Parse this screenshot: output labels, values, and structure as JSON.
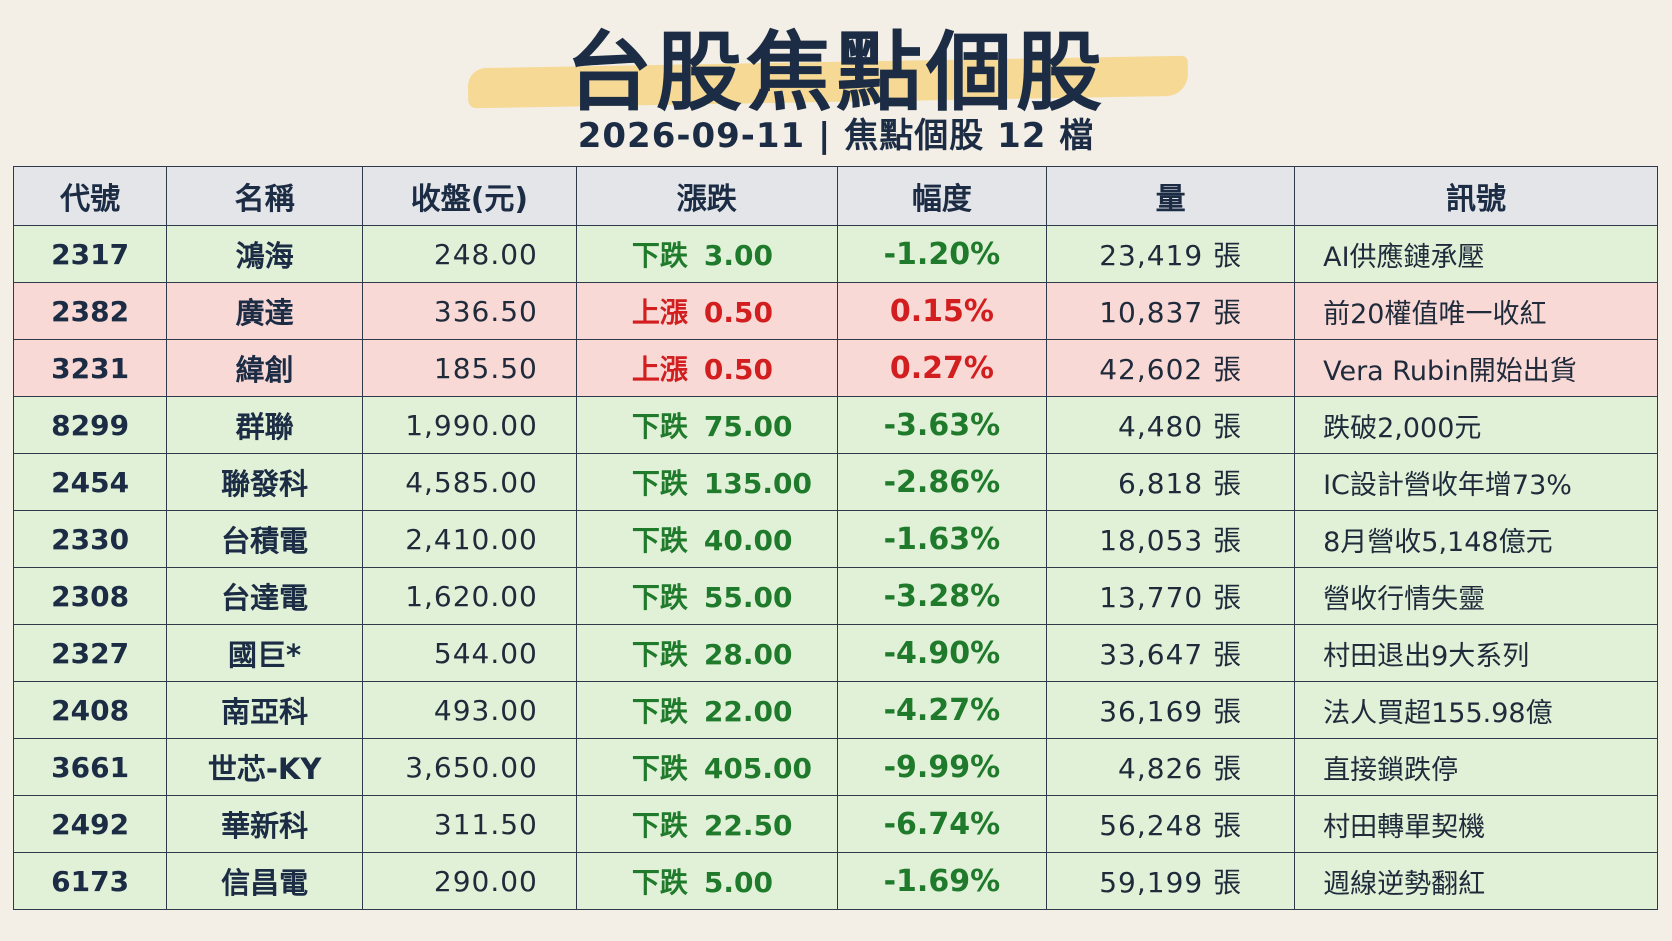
{
  "header": {
    "title": "台股焦點個股",
    "subtitle": "2026-09-11 | 焦點個股 12 檔"
  },
  "columns": [
    "代號",
    "名稱",
    "收盤(元)",
    "漲跌",
    "幅度",
    "量",
    "訊號"
  ],
  "colors": {
    "up": "#d21e1e",
    "down": "#1f7a2b",
    "up_row": "#f8d9d6",
    "down_row": "#e1f1d8"
  },
  "rows": [
    {
      "code": "2317",
      "name": "鴻海",
      "close": "248.00",
      "dir": "down",
      "chg_label": "下跌",
      "chg": "3.00",
      "pct": "-1.20%",
      "vol": "23,419 張",
      "signal": "AI供應鏈承壓"
    },
    {
      "code": "2382",
      "name": "廣達",
      "close": "336.50",
      "dir": "up",
      "chg_label": "上漲",
      "chg": "0.50",
      "pct": "0.15%",
      "vol": "10,837 張",
      "signal": "前20權值唯一收紅"
    },
    {
      "code": "3231",
      "name": "緯創",
      "close": "185.50",
      "dir": "up",
      "chg_label": "上漲",
      "chg": "0.50",
      "pct": "0.27%",
      "vol": "42,602 張",
      "signal": "Vera Rubin開始出貨"
    },
    {
      "code": "8299",
      "name": "群聯",
      "close": "1,990.00",
      "dir": "down",
      "chg_label": "下跌",
      "chg": "75.00",
      "pct": "-3.63%",
      "vol": "4,480 張",
      "signal": "跌破2,000元"
    },
    {
      "code": "2454",
      "name": "聯發科",
      "close": "4,585.00",
      "dir": "down",
      "chg_label": "下跌",
      "chg": "135.00",
      "pct": "-2.86%",
      "vol": "6,818 張",
      "signal": "IC設計營收年增73%"
    },
    {
      "code": "2330",
      "name": "台積電",
      "close": "2,410.00",
      "dir": "down",
      "chg_label": "下跌",
      "chg": "40.00",
      "pct": "-1.63%",
      "vol": "18,053 張",
      "signal": "8月營收5,148億元"
    },
    {
      "code": "2308",
      "name": "台達電",
      "close": "1,620.00",
      "dir": "down",
      "chg_label": "下跌",
      "chg": "55.00",
      "pct": "-3.28%",
      "vol": "13,770 張",
      "signal": "營收行情失靈"
    },
    {
      "code": "2327",
      "name": "國巨*",
      "close": "544.00",
      "dir": "down",
      "chg_label": "下跌",
      "chg": "28.00",
      "pct": "-4.90%",
      "vol": "33,647 張",
      "signal": "村田退出9大系列"
    },
    {
      "code": "2408",
      "name": "南亞科",
      "close": "493.00",
      "dir": "down",
      "chg_label": "下跌",
      "chg": "22.00",
      "pct": "-4.27%",
      "vol": "36,169 張",
      "signal": "法人買超155.98億"
    },
    {
      "code": "3661",
      "name": "世芯-KY",
      "close": "3,650.00",
      "dir": "down",
      "chg_label": "下跌",
      "chg": "405.00",
      "pct": "-9.99%",
      "vol": "4,826 張",
      "signal": "直接鎖跌停"
    },
    {
      "code": "2492",
      "name": "華新科",
      "close": "311.50",
      "dir": "down",
      "chg_label": "下跌",
      "chg": "22.50",
      "pct": "-6.74%",
      "vol": "56,248 張",
      "signal": "村田轉單契機"
    },
    {
      "code": "6173",
      "name": "信昌電",
      "close": "290.00",
      "dir": "down",
      "chg_label": "下跌",
      "chg": "5.00",
      "pct": "-1.69%",
      "vol": "59,199 張",
      "signal": "週線逆勢翻紅"
    }
  ]
}
